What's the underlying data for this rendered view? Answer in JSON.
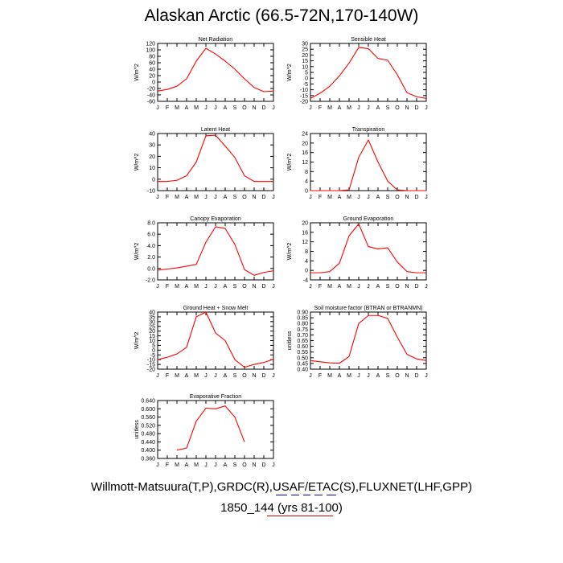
{
  "title": "Alaskan Arctic (66.5-72N,170-140W)",
  "footer": {
    "line1": "Willmott-Matsuura(T,P),GRDC(R),USAF/ETAC(S),FLUXNET(LHF,GPP)",
    "line2": "1850_144 (yrs 81-100)"
  },
  "colors": {
    "series": "#ff0000",
    "axis": "#000000",
    "footer_dash_1": "#0000cc",
    "footer_dash_2": "#cc0000"
  },
  "chart_data": [
    {
      "type": "line",
      "title": "Net Radiation",
      "ylabel": "W/m^2",
      "x": [
        "J",
        "F",
        "M",
        "A",
        "M",
        "J",
        "J",
        "A",
        "S",
        "O",
        "N",
        "D",
        "J"
      ],
      "ylim": [
        -60,
        120
      ],
      "yticks": [
        "-60",
        "-40",
        "-20",
        "0",
        "20",
        "40",
        "60",
        "80",
        "100",
        "120"
      ],
      "series": [
        {
          "values": [
            -28,
            -23,
            -13,
            10,
            65,
            105,
            87,
            65,
            40,
            10,
            -17,
            -30,
            -28
          ]
        }
      ]
    },
    {
      "type": "line",
      "title": "Sensible Heat",
      "ylabel": "W/m^2",
      "x": [
        "J",
        "F",
        "M",
        "A",
        "M",
        "J",
        "J",
        "A",
        "S",
        "O",
        "N",
        "D",
        "J"
      ],
      "ylim": [
        -20,
        30
      ],
      "yticks": [
        "-20",
        "-15",
        "-10",
        "-5",
        "0",
        "5",
        "10",
        "15",
        "20",
        "25",
        "30"
      ],
      "series": [
        {
          "values": [
            -17.5,
            -13,
            -7,
            2,
            13,
            26.5,
            25.5,
            17,
            15.5,
            3,
            -12.5,
            -16,
            -17.5
          ]
        }
      ]
    },
    {
      "type": "line",
      "title": "Latent Heat",
      "ylabel": "W/m^2",
      "x": [
        "J",
        "F",
        "M",
        "A",
        "M",
        "J",
        "J",
        "A",
        "S",
        "O",
        "N",
        "D",
        "J"
      ],
      "ylim": [
        -10,
        40
      ],
      "yticks": [
        "-10",
        "0",
        "10",
        "20",
        "30",
        "40"
      ],
      "series": [
        {
          "values": [
            -2,
            -2,
            -1,
            3,
            15,
            38,
            38.5,
            29,
            19,
            3,
            -2,
            -2,
            -2
          ]
        }
      ]
    },
    {
      "type": "line",
      "title": "Transpiration",
      "ylabel": "W/m^2",
      "x": [
        "J",
        "F",
        "M",
        "A",
        "M",
        "J",
        "J",
        "A",
        "S",
        "O",
        "N",
        "D",
        "J"
      ],
      "ylim": [
        0,
        24
      ],
      "yticks": [
        "0",
        "4",
        "8",
        "12",
        "16",
        "20",
        "24"
      ],
      "series": [
        {
          "values": [
            0,
            0,
            0,
            0,
            0.3,
            14,
            21.3,
            12,
            4,
            0.3,
            0,
            0,
            0
          ]
        }
      ]
    },
    {
      "type": "line",
      "title": "Canopy Evaporation",
      "ylabel": "W/m^2",
      "x": [
        "J",
        "F",
        "M",
        "A",
        "M",
        "J",
        "J",
        "A",
        "S",
        "O",
        "N",
        "D",
        "J"
      ],
      "ylim": [
        -2,
        8
      ],
      "yticks": [
        "-2.0",
        "0.0",
        "2.0",
        "4.0",
        "6.0",
        "8.0"
      ],
      "series": [
        {
          "values": [
            -0.3,
            -0.1,
            0.1,
            0.4,
            0.7,
            4.6,
            7.3,
            7.0,
            4.2,
            -0.2,
            -1.2,
            -0.7,
            -0.4
          ]
        }
      ]
    },
    {
      "type": "line",
      "title": "Ground Evaporation",
      "ylabel": "W/m^2",
      "x": [
        "J",
        "F",
        "M",
        "A",
        "M",
        "J",
        "J",
        "A",
        "S",
        "O",
        "N",
        "D",
        "J"
      ],
      "ylim": [
        -4,
        20
      ],
      "yticks": [
        "-4",
        "0",
        "4",
        "8",
        "12",
        "16",
        "20"
      ],
      "series": [
        {
          "values": [
            -1,
            -1,
            -0.5,
            3,
            14.5,
            19.5,
            10,
            9,
            9.5,
            3.5,
            -0.5,
            -1,
            -1
          ]
        }
      ]
    },
    {
      "type": "line",
      "title": "Ground Heat + Snow Melt",
      "ylabel": "W/m^2",
      "x": [
        "J",
        "F",
        "M",
        "A",
        "M",
        "J",
        "J",
        "A",
        "S",
        "O",
        "N",
        "D",
        "J"
      ],
      "ylim": [
        -20,
        40
      ],
      "yticks": [
        "-20",
        "-15",
        "-10",
        "-5",
        "0",
        "5",
        "10",
        "15",
        "20",
        "25",
        "30",
        "35",
        "40"
      ],
      "series": [
        {
          "values": [
            -10,
            -7.5,
            -4,
            3,
            35,
            40,
            18,
            10,
            -10,
            -18,
            -15,
            -13,
            -9.5
          ]
        }
      ]
    },
    {
      "type": "line",
      "title": "Soil moisture factor (BTRAN or BTRANMN)",
      "ylabel": "unitless",
      "x": [
        "J",
        "F",
        "M",
        "A",
        "M",
        "J",
        "J",
        "A",
        "S",
        "O",
        "N",
        "D",
        "J"
      ],
      "ylim": [
        0.4,
        0.9
      ],
      "yticks": [
        "0.40",
        "0.45",
        "0.50",
        "0.55",
        "0.60",
        "0.65",
        "0.70",
        "0.75",
        "0.80",
        "0.85",
        "0.90"
      ],
      "series": [
        {
          "values": [
            0.475,
            0.465,
            0.455,
            0.452,
            0.51,
            0.8,
            0.87,
            0.87,
            0.845,
            0.68,
            0.53,
            0.49,
            0.475
          ]
        }
      ]
    },
    {
      "type": "line",
      "title": "Evaporative Fraction",
      "ylabel": "unitless",
      "x": [
        "J",
        "F",
        "M",
        "A",
        "M",
        "J",
        "J",
        "A",
        "S",
        "O",
        "N",
        "D",
        "J"
      ],
      "ylim": [
        0.36,
        0.64
      ],
      "yticks": [
        "0.360",
        "0.400",
        "0.440",
        "0.480",
        "0.520",
        "0.560",
        "0.600",
        "0.640"
      ],
      "series": [
        {
          "values": [
            null,
            null,
            0.4,
            0.41,
            0.54,
            0.603,
            0.6,
            0.614,
            0.56,
            0.44,
            null,
            null,
            null
          ]
        }
      ]
    }
  ]
}
